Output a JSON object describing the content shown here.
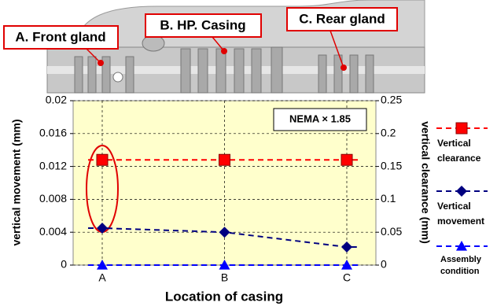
{
  "chart_data": {
    "type": "line",
    "labels": [
      "A. Front gland",
      "B. HP. Casing",
      "C. Rear gland"
    ],
    "annotation": "NEMA × 1.85",
    "xlabel": "Location of casing",
    "ylabel": "vertical movement (mm)",
    "y2label": "vertical clearance (mm)",
    "categories": [
      "A",
      "B",
      "C"
    ],
    "series": [
      {
        "name": "Vertical clearance",
        "color": "#ff0000",
        "marker": "square",
        "axis": "y2",
        "values": [
          0.16,
          0.16,
          0.16
        ]
      },
      {
        "name": "Vertical movement",
        "color": "#000080",
        "marker": "diamond",
        "values": [
          0.0045,
          0.004,
          0.0022
        ]
      },
      {
        "name": "Assembly condition",
        "color": "#0000ff",
        "marker": "triangle",
        "values": [
          0,
          0,
          0
        ]
      }
    ],
    "ylim": [
      0,
      0.02
    ],
    "yticks": [
      0,
      0.004,
      0.008,
      0.012,
      0.016,
      0.02
    ],
    "y2lim": [
      0,
      0.25
    ],
    "y2ticks": [
      0,
      0.05,
      0.1,
      0.15,
      0.2,
      0.25
    ],
    "grid": true,
    "legend": "right"
  }
}
